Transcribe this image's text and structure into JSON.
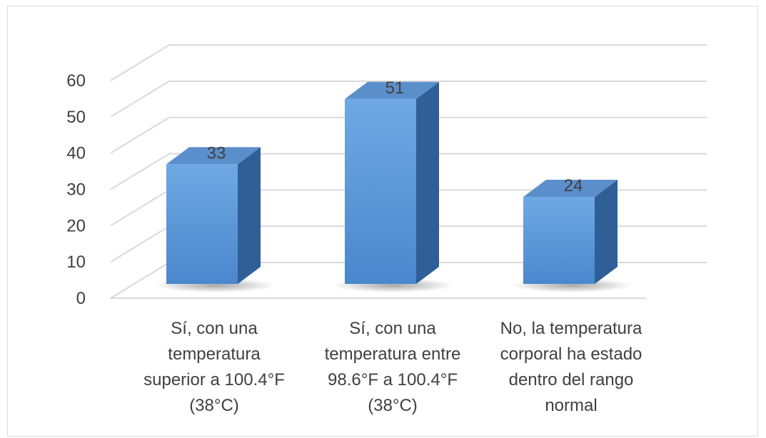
{
  "chart_data": {
    "type": "bar",
    "style": "3d-column",
    "categories": [
      [
        "Sí, con una",
        "temperatura",
        "superior a 100.4°F",
        "(38°C)"
      ],
      [
        "Sí, con una",
        "temperatura entre",
        "98.6°F a 100.4°F",
        "(38°C)"
      ],
      [
        "No, la temperatura",
        "corporal ha estado",
        "dentro del rango",
        "normal"
      ]
    ],
    "values": [
      33,
      51,
      24
    ],
    "data_labels": [
      "33",
      "51",
      "24"
    ],
    "ylim": [
      0,
      60
    ],
    "yticks": [
      "0",
      "10",
      "20",
      "30",
      "40",
      "50",
      "60"
    ],
    "title": "",
    "xlabel": "",
    "ylabel": "",
    "grid": true,
    "legend": "none",
    "colors": {
      "bar_front_top": "#6fa8e4",
      "bar_front_bottom": "#4a87cc",
      "bar_side": "#2f5f96",
      "bar_top": "#5b8fcb",
      "gridline": "#d9d9d9",
      "text": "#404040",
      "frame": "#d9d9d9"
    }
  }
}
